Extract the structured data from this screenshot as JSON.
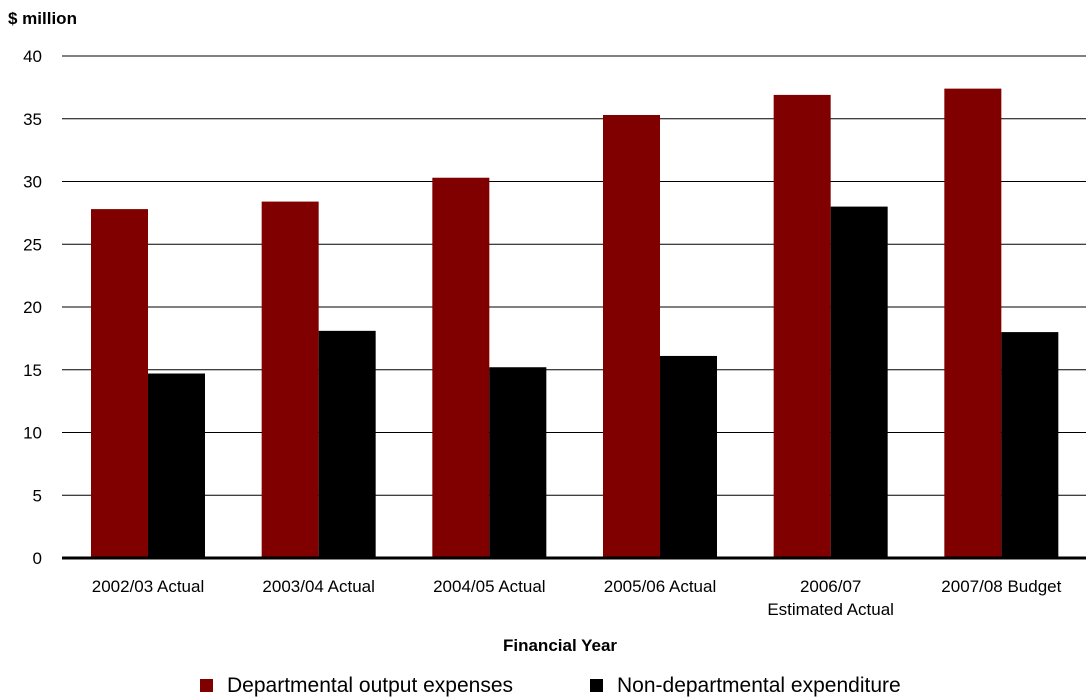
{
  "chart_data": {
    "type": "bar",
    "ylabel": "$ million",
    "xlabel": "Financial Year",
    "ylim": [
      0,
      40
    ],
    "yticks": [
      0,
      5,
      10,
      15,
      20,
      25,
      30,
      35,
      40
    ],
    "grid": true,
    "legend_position": "bottom",
    "categories": [
      [
        "2002/03 Actual"
      ],
      [
        "2003/04 Actual"
      ],
      [
        "2004/05 Actual"
      ],
      [
        "2005/06 Actual"
      ],
      [
        "2006/07",
        "Estimated Actual"
      ],
      [
        "2007/08 Budget"
      ]
    ],
    "series": [
      {
        "name": "Departmental output expenses",
        "color": "#800000",
        "values": [
          27.8,
          28.4,
          30.3,
          35.3,
          36.9,
          37.4
        ]
      },
      {
        "name": "Non-departmental expenditure",
        "color": "#000000",
        "values": [
          14.7,
          18.1,
          15.2,
          16.1,
          28.0,
          18.0
        ]
      }
    ]
  }
}
